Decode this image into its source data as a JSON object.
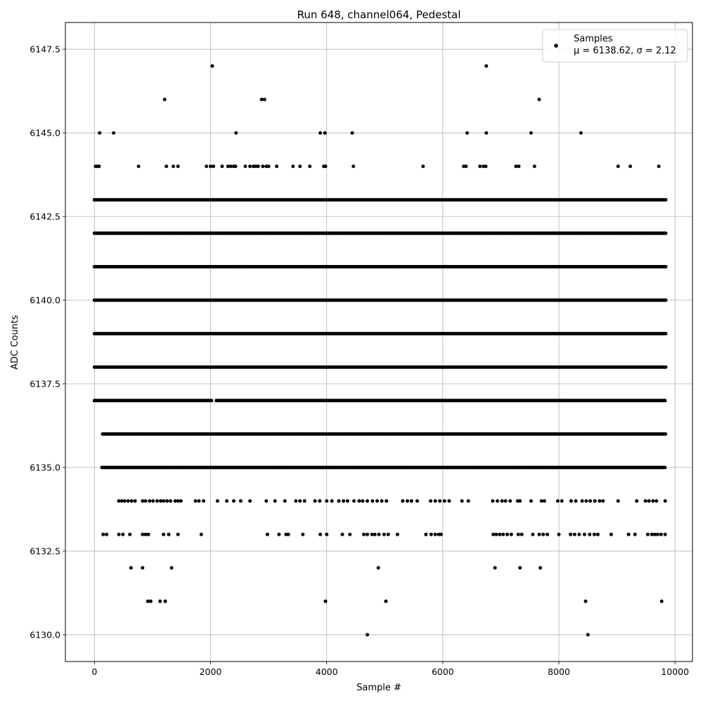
{
  "chart_data": {
    "type": "scatter",
    "title": "Run 648, channel064, Pedestal",
    "xlabel": "Sample #",
    "ylabel": "ADC Counts",
    "xlim": [
      -500,
      10300
    ],
    "ylim": [
      6129.2,
      6148.3
    ],
    "xticks": [
      0,
      2000,
      4000,
      6000,
      8000,
      10000
    ],
    "xtick_labels": [
      "0",
      "2000",
      "4000",
      "6000",
      "8000",
      "10000"
    ],
    "yticks": [
      6130.0,
      6132.5,
      6135.0,
      6137.5,
      6140.0,
      6142.5,
      6145.0,
      6147.5
    ],
    "ytick_labels": [
      "6130.0",
      "6132.5",
      "6135.0",
      "6137.5",
      "6140.0",
      "6142.5",
      "6145.0",
      "6147.5"
    ],
    "grid": true,
    "legend": {
      "placement": "top-right",
      "label": "Samples",
      "stats": "μ = 6138.62, σ = 2.12"
    },
    "marker_color": "#000000",
    "series": [
      {
        "name": "Samples",
        "level_ranges": [
          {
            "y": 6137,
            "ranges": [
              [
                0,
                2030
              ],
              [
                2100,
                9840
              ]
            ]
          },
          {
            "y": 6138,
            "ranges": [
              [
                0,
                9840
              ]
            ]
          },
          {
            "y": 6139,
            "ranges": [
              [
                0,
                9840
              ]
            ]
          },
          {
            "y": 6140,
            "ranges": [
              [
                0,
                9840
              ]
            ]
          },
          {
            "y": 6141,
            "ranges": [
              [
                0,
                9840
              ]
            ]
          },
          {
            "y": 6142,
            "ranges": [
              [
                0,
                9840
              ]
            ]
          },
          {
            "y": 6143,
            "ranges": [
              [
                0,
                9840
              ]
            ]
          },
          {
            "y": 6136,
            "ranges": [
              [
                140,
                9840
              ]
            ]
          },
          {
            "y": 6135,
            "ranges": [
              [
                130,
                9840
              ]
            ]
          }
        ],
        "points": [
          {
            "x": 20,
            "y": 6144
          },
          {
            "x": 50,
            "y": 6144
          },
          {
            "x": 80,
            "y": 6144
          },
          {
            "x": 90,
            "y": 6145
          },
          {
            "x": 330,
            "y": 6145
          },
          {
            "x": 1210,
            "y": 6146
          },
          {
            "x": 2030,
            "y": 6147
          },
          {
            "x": 2440,
            "y": 6145
          },
          {
            "x": 2880,
            "y": 6146
          },
          {
            "x": 2930,
            "y": 6146
          },
          {
            "x": 3890,
            "y": 6145
          },
          {
            "x": 3970,
            "y": 6145
          },
          {
            "x": 4440,
            "y": 6145
          },
          {
            "x": 6420,
            "y": 6145
          },
          {
            "x": 6750,
            "y": 6147
          },
          {
            "x": 6750,
            "y": 6145
          },
          {
            "x": 7520,
            "y": 6145
          },
          {
            "x": 7660,
            "y": 6146
          },
          {
            "x": 8380,
            "y": 6145
          },
          {
            "x": 760,
            "y": 6144
          },
          {
            "x": 1240,
            "y": 6144
          },
          {
            "x": 1360,
            "y": 6144
          },
          {
            "x": 1440,
            "y": 6144
          },
          {
            "x": 1930,
            "y": 6144
          },
          {
            "x": 2000,
            "y": 6144
          },
          {
            "x": 2050,
            "y": 6144
          },
          {
            "x": 2200,
            "y": 6144
          },
          {
            "x": 2300,
            "y": 6144
          },
          {
            "x": 2350,
            "y": 6144
          },
          {
            "x": 2400,
            "y": 6144
          },
          {
            "x": 2430,
            "y": 6144
          },
          {
            "x": 2600,
            "y": 6144
          },
          {
            "x": 2680,
            "y": 6144
          },
          {
            "x": 2740,
            "y": 6144
          },
          {
            "x": 2780,
            "y": 6144
          },
          {
            "x": 2820,
            "y": 6144
          },
          {
            "x": 2900,
            "y": 6144
          },
          {
            "x": 2960,
            "y": 6144
          },
          {
            "x": 3000,
            "y": 6144
          },
          {
            "x": 3140,
            "y": 6144
          },
          {
            "x": 3420,
            "y": 6144
          },
          {
            "x": 3540,
            "y": 6144
          },
          {
            "x": 3710,
            "y": 6144
          },
          {
            "x": 3950,
            "y": 6144
          },
          {
            "x": 3980,
            "y": 6144
          },
          {
            "x": 4460,
            "y": 6144
          },
          {
            "x": 5660,
            "y": 6144
          },
          {
            "x": 6360,
            "y": 6144
          },
          {
            "x": 6400,
            "y": 6144
          },
          {
            "x": 6640,
            "y": 6144
          },
          {
            "x": 6700,
            "y": 6144
          },
          {
            "x": 6740,
            "y": 6144
          },
          {
            "x": 7260,
            "y": 6144
          },
          {
            "x": 7310,
            "y": 6144
          },
          {
            "x": 7580,
            "y": 6144
          },
          {
            "x": 9020,
            "y": 6144
          },
          {
            "x": 9230,
            "y": 6144
          },
          {
            "x": 9720,
            "y": 6144
          },
          {
            "x": 420,
            "y": 6134
          },
          {
            "x": 470,
            "y": 6134
          },
          {
            "x": 520,
            "y": 6134
          },
          {
            "x": 580,
            "y": 6134
          },
          {
            "x": 640,
            "y": 6134
          },
          {
            "x": 700,
            "y": 6134
          },
          {
            "x": 830,
            "y": 6134
          },
          {
            "x": 880,
            "y": 6134
          },
          {
            "x": 950,
            "y": 6134
          },
          {
            "x": 1010,
            "y": 6134
          },
          {
            "x": 1080,
            "y": 6134
          },
          {
            "x": 1140,
            "y": 6134
          },
          {
            "x": 1190,
            "y": 6134
          },
          {
            "x": 1250,
            "y": 6134
          },
          {
            "x": 1310,
            "y": 6134
          },
          {
            "x": 1390,
            "y": 6134
          },
          {
            "x": 1440,
            "y": 6134
          },
          {
            "x": 1490,
            "y": 6134
          },
          {
            "x": 1740,
            "y": 6134
          },
          {
            "x": 1800,
            "y": 6134
          },
          {
            "x": 1880,
            "y": 6134
          },
          {
            "x": 2120,
            "y": 6134
          },
          {
            "x": 2280,
            "y": 6134
          },
          {
            "x": 2400,
            "y": 6134
          },
          {
            "x": 2520,
            "y": 6134
          },
          {
            "x": 2680,
            "y": 6134
          },
          {
            "x": 2960,
            "y": 6134
          },
          {
            "x": 3110,
            "y": 6134
          },
          {
            "x": 3280,
            "y": 6134
          },
          {
            "x": 3470,
            "y": 6134
          },
          {
            "x": 3540,
            "y": 6134
          },
          {
            "x": 3620,
            "y": 6134
          },
          {
            "x": 3800,
            "y": 6134
          },
          {
            "x": 3880,
            "y": 6134
          },
          {
            "x": 4000,
            "y": 6134
          },
          {
            "x": 4090,
            "y": 6134
          },
          {
            "x": 4210,
            "y": 6134
          },
          {
            "x": 4290,
            "y": 6134
          },
          {
            "x": 4360,
            "y": 6134
          },
          {
            "x": 4470,
            "y": 6134
          },
          {
            "x": 4560,
            "y": 6134
          },
          {
            "x": 4620,
            "y": 6134
          },
          {
            "x": 4700,
            "y": 6134
          },
          {
            "x": 4790,
            "y": 6134
          },
          {
            "x": 4870,
            "y": 6134
          },
          {
            "x": 4950,
            "y": 6134
          },
          {
            "x": 5030,
            "y": 6134
          },
          {
            "x": 5310,
            "y": 6134
          },
          {
            "x": 5390,
            "y": 6134
          },
          {
            "x": 5460,
            "y": 6134
          },
          {
            "x": 5560,
            "y": 6134
          },
          {
            "x": 5790,
            "y": 6134
          },
          {
            "x": 5870,
            "y": 6134
          },
          {
            "x": 5950,
            "y": 6134
          },
          {
            "x": 6030,
            "y": 6134
          },
          {
            "x": 6110,
            "y": 6134
          },
          {
            "x": 6330,
            "y": 6134
          },
          {
            "x": 6440,
            "y": 6134
          },
          {
            "x": 6860,
            "y": 6134
          },
          {
            "x": 6940,
            "y": 6134
          },
          {
            "x": 7020,
            "y": 6134
          },
          {
            "x": 7080,
            "y": 6134
          },
          {
            "x": 7160,
            "y": 6134
          },
          {
            "x": 7290,
            "y": 6134
          },
          {
            "x": 7330,
            "y": 6134
          },
          {
            "x": 7520,
            "y": 6134
          },
          {
            "x": 7700,
            "y": 6134
          },
          {
            "x": 7750,
            "y": 6134
          },
          {
            "x": 7980,
            "y": 6134
          },
          {
            "x": 8050,
            "y": 6134
          },
          {
            "x": 8210,
            "y": 6134
          },
          {
            "x": 8290,
            "y": 6134
          },
          {
            "x": 8400,
            "y": 6134
          },
          {
            "x": 8470,
            "y": 6134
          },
          {
            "x": 8540,
            "y": 6134
          },
          {
            "x": 8620,
            "y": 6134
          },
          {
            "x": 8700,
            "y": 6134
          },
          {
            "x": 8760,
            "y": 6134
          },
          {
            "x": 9020,
            "y": 6134
          },
          {
            "x": 9340,
            "y": 6134
          },
          {
            "x": 9490,
            "y": 6134
          },
          {
            "x": 9550,
            "y": 6134
          },
          {
            "x": 9620,
            "y": 6134
          },
          {
            "x": 9680,
            "y": 6134
          },
          {
            "x": 9830,
            "y": 6134
          },
          {
            "x": 150,
            "y": 6133
          },
          {
            "x": 210,
            "y": 6133
          },
          {
            "x": 420,
            "y": 6133
          },
          {
            "x": 490,
            "y": 6133
          },
          {
            "x": 610,
            "y": 6133
          },
          {
            "x": 830,
            "y": 6133
          },
          {
            "x": 880,
            "y": 6133
          },
          {
            "x": 930,
            "y": 6133
          },
          {
            "x": 1190,
            "y": 6133
          },
          {
            "x": 1280,
            "y": 6133
          },
          {
            "x": 1440,
            "y": 6133
          },
          {
            "x": 1840,
            "y": 6133
          },
          {
            "x": 2980,
            "y": 6133
          },
          {
            "x": 3180,
            "y": 6133
          },
          {
            "x": 3300,
            "y": 6133
          },
          {
            "x": 3340,
            "y": 6133
          },
          {
            "x": 3590,
            "y": 6133
          },
          {
            "x": 3890,
            "y": 6133
          },
          {
            "x": 4000,
            "y": 6133
          },
          {
            "x": 4270,
            "y": 6133
          },
          {
            "x": 4400,
            "y": 6133
          },
          {
            "x": 4640,
            "y": 6133
          },
          {
            "x": 4700,
            "y": 6133
          },
          {
            "x": 4780,
            "y": 6133
          },
          {
            "x": 4830,
            "y": 6133
          },
          {
            "x": 4900,
            "y": 6133
          },
          {
            "x": 4990,
            "y": 6133
          },
          {
            "x": 5060,
            "y": 6133
          },
          {
            "x": 5220,
            "y": 6133
          },
          {
            "x": 5710,
            "y": 6133
          },
          {
            "x": 5800,
            "y": 6133
          },
          {
            "x": 5870,
            "y": 6133
          },
          {
            "x": 5930,
            "y": 6133
          },
          {
            "x": 5970,
            "y": 6133
          },
          {
            "x": 6870,
            "y": 6133
          },
          {
            "x": 6920,
            "y": 6133
          },
          {
            "x": 6980,
            "y": 6133
          },
          {
            "x": 7040,
            "y": 6133
          },
          {
            "x": 7110,
            "y": 6133
          },
          {
            "x": 7180,
            "y": 6133
          },
          {
            "x": 7300,
            "y": 6133
          },
          {
            "x": 7360,
            "y": 6133
          },
          {
            "x": 7550,
            "y": 6133
          },
          {
            "x": 7660,
            "y": 6133
          },
          {
            "x": 7730,
            "y": 6133
          },
          {
            "x": 7800,
            "y": 6133
          },
          {
            "x": 8000,
            "y": 6133
          },
          {
            "x": 8200,
            "y": 6133
          },
          {
            "x": 8270,
            "y": 6133
          },
          {
            "x": 8350,
            "y": 6133
          },
          {
            "x": 8440,
            "y": 6133
          },
          {
            "x": 8530,
            "y": 6133
          },
          {
            "x": 8610,
            "y": 6133
          },
          {
            "x": 8670,
            "y": 6133
          },
          {
            "x": 8900,
            "y": 6133
          },
          {
            "x": 9200,
            "y": 6133
          },
          {
            "x": 9310,
            "y": 6133
          },
          {
            "x": 9530,
            "y": 6133
          },
          {
            "x": 9600,
            "y": 6133
          },
          {
            "x": 9650,
            "y": 6133
          },
          {
            "x": 9700,
            "y": 6133
          },
          {
            "x": 9760,
            "y": 6133
          },
          {
            "x": 9830,
            "y": 6133
          },
          {
            "x": 630,
            "y": 6132
          },
          {
            "x": 830,
            "y": 6132
          },
          {
            "x": 1330,
            "y": 6132
          },
          {
            "x": 4890,
            "y": 6132
          },
          {
            "x": 6900,
            "y": 6132
          },
          {
            "x": 7330,
            "y": 6132
          },
          {
            "x": 7680,
            "y": 6132
          },
          {
            "x": 920,
            "y": 6131
          },
          {
            "x": 970,
            "y": 6131
          },
          {
            "x": 1130,
            "y": 6131
          },
          {
            "x": 1220,
            "y": 6131
          },
          {
            "x": 3980,
            "y": 6131
          },
          {
            "x": 5020,
            "y": 6131
          },
          {
            "x": 8460,
            "y": 6131
          },
          {
            "x": 9770,
            "y": 6131
          },
          {
            "x": 4700,
            "y": 6130
          },
          {
            "x": 8500,
            "y": 6130
          }
        ]
      }
    ]
  }
}
